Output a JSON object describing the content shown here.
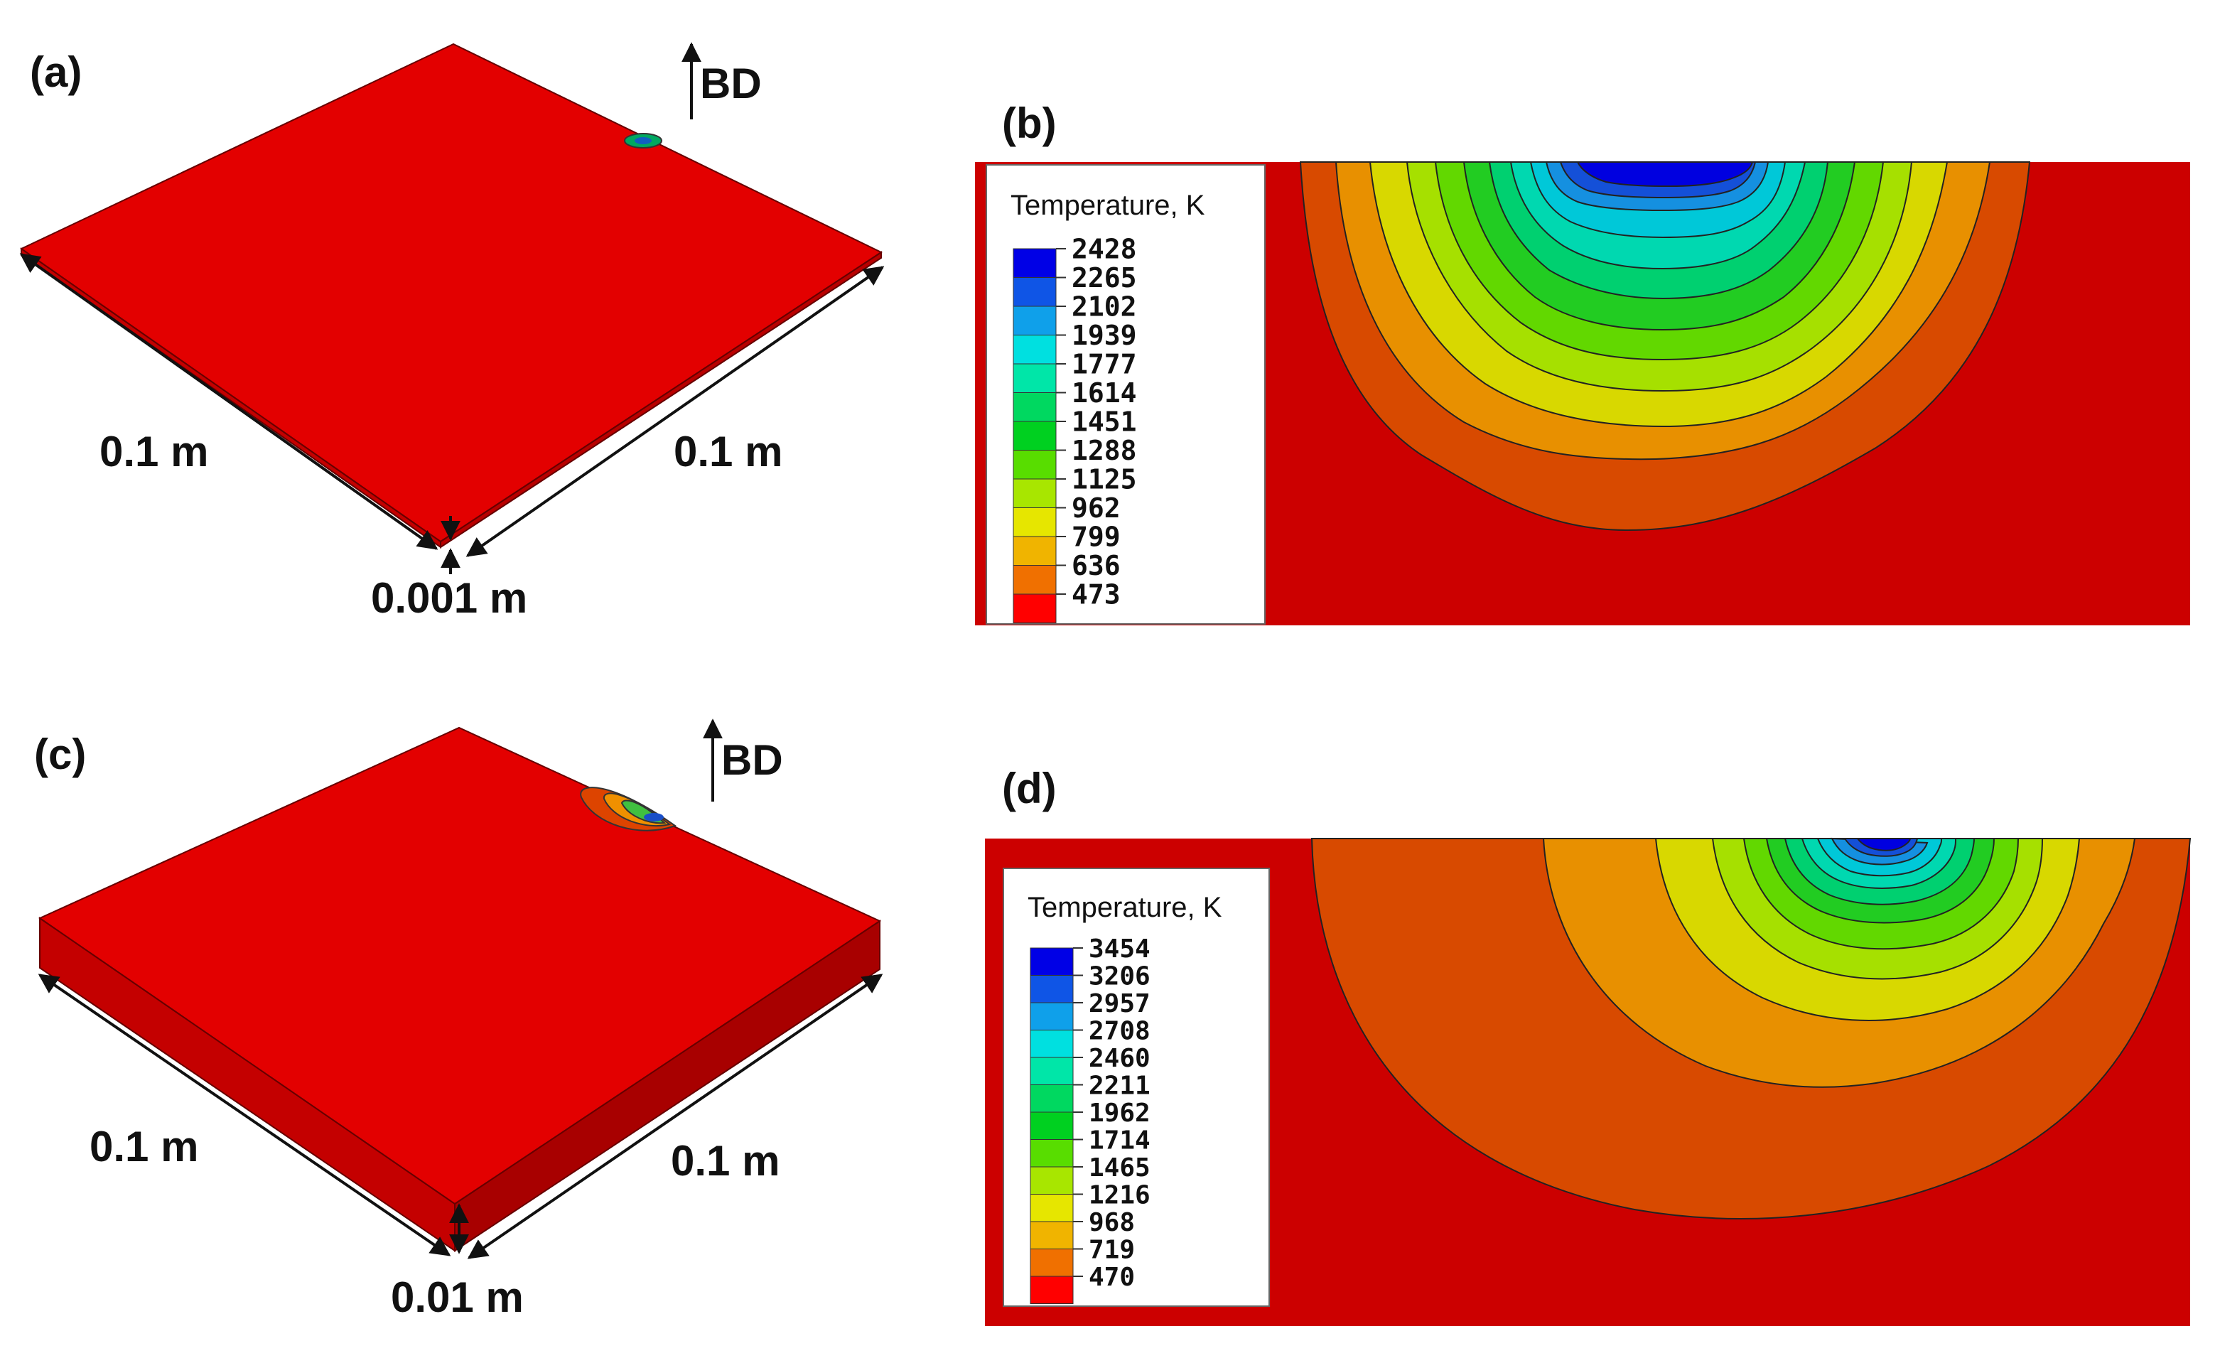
{
  "panels": {
    "a": {
      "label": "(a)",
      "bd_label": "BD",
      "dim_left": "0.1 m",
      "dim_right": "0.1 m",
      "dim_thickness": "0.001 m"
    },
    "b": {
      "label": "(b)",
      "legend_title": "Temperature, K",
      "legend_values": [
        "2428",
        "2265",
        "2102",
        "1939",
        "1777",
        "1614",
        "1451",
        "1288",
        "1125",
        "962",
        "799",
        "636",
        "473"
      ]
    },
    "c": {
      "label": "(c)",
      "bd_label": "BD",
      "dim_left": "0.1 m",
      "dim_right": "0.1 m",
      "dim_thickness": "0.01 m"
    },
    "d": {
      "label": "(d)",
      "legend_title": "Temperature, K",
      "legend_values": [
        "3454",
        "3206",
        "2957",
        "2708",
        "2460",
        "2211",
        "1962",
        "1714",
        "1465",
        "1216",
        "968",
        "719",
        "470"
      ]
    }
  },
  "colors": {
    "plate_top": "#e30000",
    "plate_side": "#c40000",
    "contour_bg": "#cc0000",
    "legend_swatches": [
      "#0000e6",
      "#0f55e6",
      "#0fa0ea",
      "#00e0e0",
      "#00e6a8",
      "#00d860",
      "#00d020",
      "#58dd00",
      "#a8e600",
      "#e6e600",
      "#f0b400",
      "#f07000",
      "#ff0000"
    ]
  }
}
